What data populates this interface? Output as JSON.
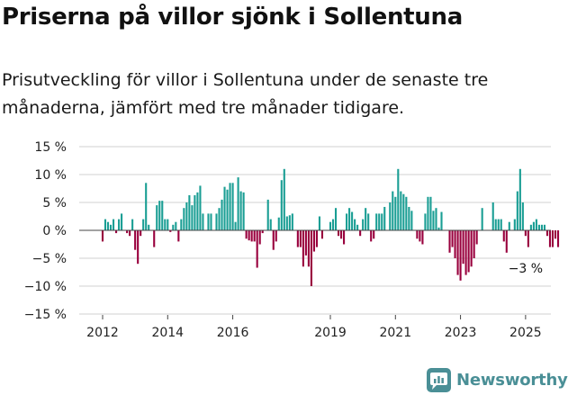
{
  "title": "Priserna på villor sjönk i Sollentuna",
  "subtitle": "Prisutveckling för villor i Sollentuna under de senaste tre månaderna, jämfört med tre månader tidigare.",
  "brand": {
    "name": "Newsworthy",
    "icon": "newsworthy-logo-icon"
  },
  "colors": {
    "positive": "#1a9e94",
    "negative": "#99003d",
    "grid": "#d0d0d0",
    "brand": "#4a8f96"
  },
  "chart_data": {
    "type": "bar",
    "title": "Priserna på villor sjönk i Sollentuna",
    "ylim": [
      -15,
      15
    ],
    "yticks": [
      15,
      10,
      5,
      0,
      -5,
      -10,
      -15
    ],
    "ytick_labels": [
      "15 %",
      "10 %",
      "5 %",
      "0 %",
      "−5 %",
      "−10 %",
      "−15 %"
    ],
    "xticks": [
      {
        "label": "2012",
        "month": 0
      },
      {
        "label": "2014",
        "month": 24
      },
      {
        "label": "2016",
        "month": 48
      },
      {
        "label": "2019",
        "month": 84
      },
      {
        "label": "2021",
        "month": 108
      },
      {
        "label": "2023",
        "month": 132
      },
      {
        "label": "2025",
        "month": 156
      }
    ],
    "start": "2012-01",
    "annotation": {
      "text": "−3 %",
      "month": 158
    },
    "values": [
      -2,
      2,
      1.5,
      1,
      2,
      -0.5,
      2,
      3,
      0,
      -0.5,
      -1,
      2,
      -3.5,
      -6,
      -1,
      2,
      8.5,
      1,
      0,
      -3,
      4.5,
      5.3,
      5.3,
      2,
      2,
      -0.3,
      1,
      1.5,
      -2,
      2,
      4,
      5,
      6.3,
      4.5,
      6.3,
      6.8,
      8,
      3,
      0,
      3,
      3,
      0,
      3,
      4,
      5.5,
      7.8,
      7.3,
      8.5,
      8.5,
      1.5,
      9.5,
      7,
      6.8,
      -1.5,
      -1.8,
      -2,
      -2,
      -6.7,
      -2.5,
      -0.5,
      0,
      5.5,
      2,
      -3.5,
      -2,
      2.3,
      9,
      11,
      2.5,
      2.7,
      3,
      0,
      -3,
      -3,
      -6.5,
      -4.5,
      -6.5,
      -10,
      -3.8,
      -3,
      2.5,
      -1.5,
      0,
      0,
      1.5,
      2,
      4,
      -1,
      -1.5,
      -2.5,
      3,
      4,
      3.3,
      2,
      1,
      -1,
      2,
      4,
      3,
      -2,
      -1.5,
      3,
      3,
      3,
      4.2,
      0,
      5,
      7,
      6,
      11,
      7,
      6.5,
      6,
      4.2,
      3.5,
      0,
      -1.5,
      -2,
      -2.5,
      3,
      6,
      6,
      3.5,
      4,
      0.5,
      3.3,
      0,
      0,
      -4,
      -3,
      -5,
      -8,
      -9,
      -6,
      -8,
      -7.5,
      -6.5,
      -5,
      -2.5,
      0,
      4,
      0,
      0,
      0,
      5,
      2,
      2,
      2,
      -2,
      -4,
      1.5,
      0,
      2,
      7,
      11,
      5,
      -1,
      -3,
      1,
      1.5,
      2,
      1,
      1,
      1,
      -1,
      -3,
      -3,
      -1.5,
      -3
    ]
  }
}
